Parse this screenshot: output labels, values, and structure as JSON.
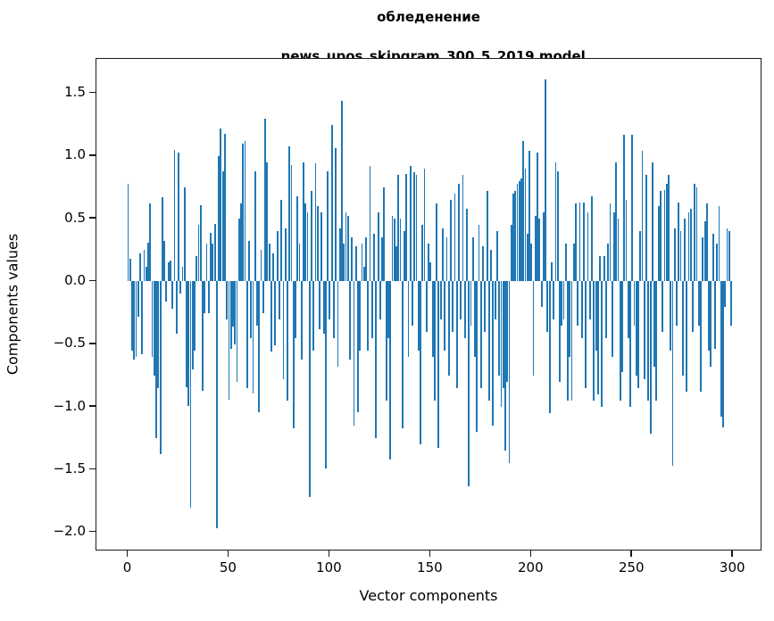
{
  "chart_data": {
    "type": "bar",
    "title_line1": "обледенение",
    "title_line2": "news_upos_skipgram_300_5_2019 model",
    "xlabel": "Vector components",
    "ylabel": "Components values",
    "bar_color": "#1f77b4",
    "background_color": "#ffffff",
    "grid": "off",
    "legend": "none",
    "xlim": [
      -15.7,
      314.5
    ],
    "ylim": [
      -2.152,
      1.774
    ],
    "x_ticks": [
      {
        "label": "0",
        "value": 0
      },
      {
        "label": "50",
        "value": 50
      },
      {
        "label": "100",
        "value": 100
      },
      {
        "label": "150",
        "value": 150
      },
      {
        "label": "200",
        "value": 200
      },
      {
        "label": "250",
        "value": 250
      },
      {
        "label": "300",
        "value": 300
      }
    ],
    "y_ticks": [
      {
        "label": "1.5",
        "value": 1.5
      },
      {
        "label": "1.0",
        "value": 1.0
      },
      {
        "label": "0.5",
        "value": 0.5
      },
      {
        "label": "0.0",
        "value": 0.0
      },
      {
        "label": "−0.5",
        "value": -0.5
      },
      {
        "label": "−1.0",
        "value": -1.0
      },
      {
        "label": "−1.5",
        "value": -1.5
      },
      {
        "label": "−2.0",
        "value": -2.0
      }
    ],
    "values": [
      0.78,
      0.18,
      -0.55,
      -0.62,
      -0.6,
      -0.28,
      0.22,
      -0.58,
      0.25,
      0.12,
      0.31,
      0.62,
      -0.6,
      -0.75,
      -1.25,
      -0.85,
      -1.38,
      0.67,
      0.32,
      -0.16,
      0.15,
      0.17,
      -0.22,
      1.05,
      -0.42,
      1.03,
      -0.1,
      0.12,
      0.75,
      -0.84,
      -0.99,
      -1.8,
      -0.7,
      -0.55,
      0.2,
      0.45,
      0.61,
      -0.87,
      -0.25,
      0.3,
      -0.25,
      0.39,
      0.3,
      0.46,
      -1.97,
      1.0,
      1.22,
      0.88,
      1.18,
      -0.3,
      -0.94,
      -0.54,
      -0.36,
      -0.5,
      -0.8,
      0.5,
      0.62,
      1.1,
      1.12,
      -0.85,
      0.32,
      -0.45,
      -0.89,
      0.88,
      -0.35,
      -1.04,
      0.25,
      -0.25,
      1.3,
      0.95,
      0.3,
      -0.56,
      0.22,
      -0.51,
      0.4,
      -0.3,
      0.65,
      -0.78,
      0.42,
      -0.95,
      1.08,
      0.93,
      -1.17,
      -0.45,
      0.68,
      0.3,
      -0.62,
      0.95,
      0.62,
      0.55,
      -1.72,
      0.72,
      -0.55,
      0.94,
      0.6,
      -0.38,
      0.55,
      -0.42,
      -1.49,
      0.88,
      -0.3,
      1.25,
      -0.45,
      1.06,
      -0.68,
      0.42,
      1.44,
      0.3,
      0.55,
      0.52,
      -0.62,
      0.35,
      -1.15,
      0.28,
      -1.04,
      -0.55,
      0.3,
      0.12,
      0.35,
      -0.55,
      0.92,
      -0.45,
      0.38,
      -1.25,
      0.55,
      -0.3,
      0.35,
      0.75,
      -0.95,
      -0.45,
      -1.42,
      0.52,
      0.5,
      0.28,
      0.85,
      0.5,
      -1.17,
      0.4,
      0.86,
      -0.6,
      0.92,
      -0.35,
      0.87,
      0.85,
      -0.55,
      -1.3,
      0.45,
      0.9,
      -0.4,
      0.3,
      0.15,
      -0.6,
      -0.95,
      0.62,
      -1.33,
      -0.3,
      0.42,
      -0.55,
      0.35,
      -0.75,
      0.65,
      -0.4,
      0.7,
      -0.85,
      0.78,
      -0.3,
      0.85,
      -0.45,
      0.58,
      -1.63,
      -0.35,
      0.35,
      -0.6,
      -1.2,
      0.45,
      -0.85,
      0.28,
      -0.4,
      0.72,
      -0.95,
      0.25,
      -1.15,
      -0.3,
      0.4,
      -0.75,
      -1.0,
      -0.85,
      -1.35,
      -0.8,
      -1.45,
      0.45,
      0.7,
      0.72,
      0.78,
      0.8,
      0.82,
      1.12,
      0.9,
      0.38,
      1.04,
      0.3,
      -0.75,
      0.52,
      1.03,
      0.5,
      -0.2,
      0.55,
      1.61,
      -0.4,
      -1.05,
      0.15,
      -0.3,
      0.95,
      0.88,
      -0.8,
      -0.35,
      -0.3,
      0.3,
      -0.95,
      -0.6,
      -0.95,
      0.3,
      0.62,
      -0.35,
      0.63,
      -0.45,
      0.63,
      -0.85,
      0.55,
      -0.3,
      0.68,
      -0.95,
      -0.55,
      -0.9,
      0.2,
      -1.0,
      0.2,
      -0.45,
      0.3,
      0.62,
      -0.6,
      0.55,
      0.95,
      0.5,
      -0.95,
      -0.72,
      1.17,
      0.65,
      -0.45,
      -1.0,
      1.17,
      -0.35,
      -0.75,
      -0.85,
      0.4,
      1.04,
      -0.78,
      0.85,
      -0.95,
      -1.21,
      0.95,
      -0.68,
      -0.95,
      0.6,
      0.72,
      -0.4,
      0.73,
      0.78,
      0.85,
      -0.55,
      -1.47,
      0.42,
      -0.35,
      0.63,
      0.4,
      -0.75,
      0.5,
      -0.88,
      0.55,
      0.58,
      -0.4,
      0.78,
      0.75,
      -0.35,
      -0.88,
      0.35,
      0.48,
      0.62,
      -0.55,
      -0.68,
      0.38,
      -0.54,
      0.3,
      0.6,
      -1.08,
      -1.16,
      -0.2,
      0.42,
      0.4,
      -0.35
    ]
  }
}
